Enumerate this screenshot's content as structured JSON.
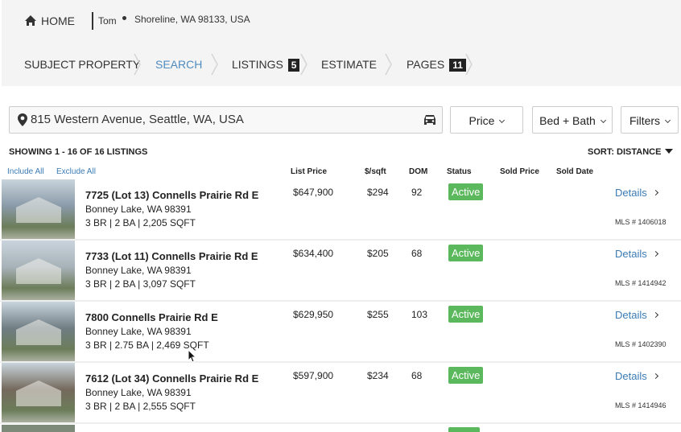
{
  "header": {
    "home": "HOME",
    "user": "Tom",
    "location": "Shoreline, WA 98133, USA"
  },
  "nav": {
    "items": [
      {
        "label": "SUBJECT PROPERTY"
      },
      {
        "label": "SEARCH"
      },
      {
        "label": "LISTINGS",
        "badge": 5
      },
      {
        "label": "ESTIMATE"
      },
      {
        "label": "PAGES",
        "badge": 11
      }
    ]
  },
  "search": {
    "address": "815 Western Avenue, Seattle, WA, USA",
    "filters": [
      "Price",
      "Bed + Bath",
      "Filters"
    ]
  },
  "results": {
    "summary": "SHOWING 1 - 16 OF 16 LISTINGS",
    "sort": "SORT: DISTANCE",
    "include_all": "Include All",
    "exclude_all": "Exclude All",
    "columns": [
      "List Price",
      "$/sqft",
      "DOM",
      "Status",
      "Sold Price",
      "Sold Date"
    ]
  },
  "listings": [
    {
      "address": "7725 (Lot 13) Connells Prairie Rd E",
      "city": "Bonney Lake, WA 98391",
      "details": "3 BR | 2 BA | 2,205 SQFT",
      "list_price": "$647,900",
      "price_per_sqft": "$294",
      "dom": 92,
      "status": "Active",
      "link": "Details",
      "mls": "MLS # 1406018"
    },
    {
      "address": "7733 (Lot 11) Connells Prairie Rd E",
      "city": "Bonney Lake, WA 98391",
      "details": "3 BR | 2 BA | 3,097 SQFT",
      "list_price": "$634,400",
      "price_per_sqft": "$205",
      "dom": 68,
      "status": "Active",
      "link": "Details",
      "mls": "MLS # 1414942"
    },
    {
      "address": "7800 Connells Prairie Rd E",
      "city": "Bonney Lake, WA 98391",
      "details": "3 BR | 2.75 BA | 2,469 SQFT",
      "list_price": "$629,950",
      "price_per_sqft": "$255",
      "dom": 103,
      "status": "Active",
      "link": "Details",
      "mls": "MLS # 1402390"
    },
    {
      "address": "7612 (Lot 34) Connells Prairie Rd E",
      "city": "Bonney Lake, WA 98391",
      "details": "3 BR | 2 BA | 2,555 SQFT",
      "list_price": "$597,900",
      "price_per_sqft": "$234",
      "dom": 68,
      "status": "Active",
      "link": "Details",
      "mls": "MLS # 1414946"
    }
  ]
}
